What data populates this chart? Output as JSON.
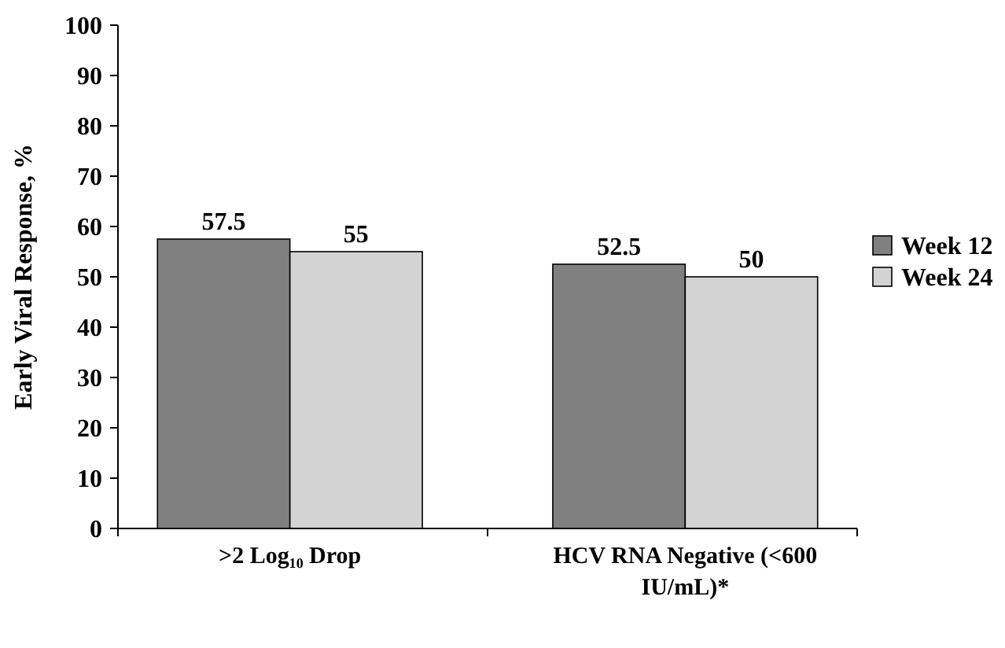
{
  "chart_data": {
    "type": "bar",
    "ylabel": "Early Viral Response, %",
    "categories": [
      ">2 Log₁₀ Drop",
      "HCV RNA Negative (<600 IU/mL)*"
    ],
    "series": [
      {
        "name": "Week 12",
        "color": "#808080",
        "values": [
          57.5,
          52.5
        ]
      },
      {
        "name": "Week 24",
        "color": "#d3d3d3",
        "values": [
          55,
          50
        ]
      }
    ],
    "ylim": [
      0,
      100
    ],
    "yticks": [
      0,
      10,
      20,
      30,
      40,
      50,
      60,
      70,
      80,
      90,
      100
    ],
    "grid": false,
    "legend": "right",
    "data_labels": true
  }
}
